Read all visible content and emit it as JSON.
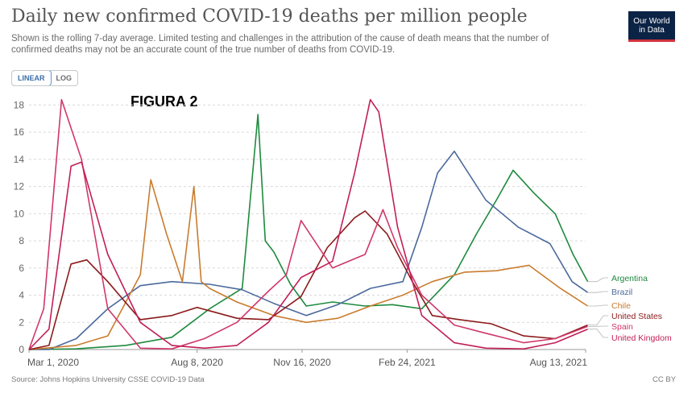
{
  "header": {
    "title": "Daily new confirmed COVID-19 deaths per million people",
    "subtitle": "Shown is the rolling 7-day average. Limited testing and challenges in the attribution of the cause of death means that the number of confirmed deaths may not be an accurate count of the true number of deaths from COVID-19.",
    "logo_line1": "Our World",
    "logo_line2": "in Data"
  },
  "scale_toggle": {
    "linear_label": "LINEAR",
    "log_label": "LOG",
    "selected": "LINEAR"
  },
  "annotation": "FIGURA 2",
  "footer": {
    "source": "Source: Johns Hopkins University CSSE COVID-19 Data",
    "license": "CC BY"
  },
  "chart_data": {
    "type": "line",
    "title": "Daily new confirmed COVID-19 deaths per million people",
    "xlabel": "",
    "ylabel": "",
    "x_ticks": [
      "Mar 1, 2020",
      "Aug 8, 2020",
      "Nov 16, 2020",
      "Feb 24, 2021",
      "Aug 13, 2021"
    ],
    "y_ticks": [
      0,
      2,
      4,
      6,
      8,
      10,
      12,
      14,
      16,
      18
    ],
    "ylim": [
      0,
      18.5
    ],
    "grid": true,
    "legend": "right-end-labels",
    "series": [
      {
        "name": "Argentina",
        "color": "#1e8a3e",
        "x": [
          "2020-03-01",
          "2020-04-15",
          "2020-06-01",
          "2020-07-15",
          "2020-08-20",
          "2020-09-20",
          "2020-10-05",
          "2020-10-12",
          "2020-10-20",
          "2020-11-05",
          "2020-11-20",
          "2020-12-15",
          "2021-01-15",
          "2021-02-10",
          "2021-03-10",
          "2021-04-10",
          "2021-05-01",
          "2021-05-20",
          "2021-06-05",
          "2021-06-25",
          "2021-07-15",
          "2021-08-01",
          "2021-08-15"
        ],
        "y": [
          0,
          0.05,
          0.3,
          0.9,
          3.0,
          4.5,
          17.3,
          8.0,
          7.2,
          4.8,
          3.2,
          3.5,
          3.2,
          3.3,
          3.0,
          5.5,
          8.5,
          11.0,
          13.2,
          11.5,
          10.0,
          7.0,
          5.0
        ]
      },
      {
        "name": "Brazil",
        "color": "#4c6a9c",
        "x": [
          "2020-03-01",
          "2020-03-20",
          "2020-04-15",
          "2020-05-15",
          "2020-06-15",
          "2020-07-15",
          "2020-08-20",
          "2020-09-20",
          "2020-10-20",
          "2020-11-20",
          "2020-12-20",
          "2021-01-20",
          "2021-02-20",
          "2021-03-10",
          "2021-03-25",
          "2021-04-10",
          "2021-05-10",
          "2021-06-10",
          "2021-07-10",
          "2021-07-31",
          "2021-08-15"
        ],
        "y": [
          0,
          0,
          0.8,
          3.0,
          4.7,
          5.0,
          4.8,
          4.4,
          3.4,
          2.5,
          3.3,
          4.5,
          5.0,
          9.0,
          13.0,
          14.6,
          11.0,
          9.0,
          7.8,
          5.0,
          4.2
        ]
      },
      {
        "name": "Chile",
        "color": "#c87c2e",
        "x": [
          "2020-03-01",
          "2020-04-15",
          "2020-05-15",
          "2020-06-15",
          "2020-06-25",
          "2020-07-10",
          "2020-07-25",
          "2020-08-05",
          "2020-08-12",
          "2020-08-20",
          "2020-09-15",
          "2020-10-20",
          "2020-11-20",
          "2020-12-20",
          "2021-01-20",
          "2021-02-20",
          "2021-03-20",
          "2021-04-20",
          "2021-05-20",
          "2021-06-20",
          "2021-07-20",
          "2021-08-15"
        ],
        "y": [
          0,
          0.3,
          1.0,
          5.5,
          12.5,
          8.5,
          5.0,
          12.0,
          5.0,
          4.5,
          3.5,
          2.5,
          2.0,
          2.3,
          3.2,
          4.0,
          5.0,
          5.7,
          5.8,
          6.2,
          4.5,
          3.2
        ]
      },
      {
        "name": "United States",
        "color": "#8b1a1a",
        "x": [
          "2020-03-01",
          "2020-03-20",
          "2020-04-10",
          "2020-04-25",
          "2020-05-15",
          "2020-06-15",
          "2020-07-15",
          "2020-08-08",
          "2020-09-15",
          "2020-10-15",
          "2020-11-15",
          "2020-12-10",
          "2021-01-05",
          "2021-01-15",
          "2021-02-05",
          "2021-03-01",
          "2021-03-20",
          "2021-04-15",
          "2021-05-15",
          "2021-06-15",
          "2021-07-15",
          "2021-08-15"
        ],
        "y": [
          0,
          0.3,
          6.3,
          6.6,
          5.0,
          2.2,
          2.5,
          3.1,
          2.3,
          2.2,
          3.9,
          7.5,
          9.7,
          10.2,
          8.5,
          5.0,
          2.5,
          2.2,
          1.9,
          1.0,
          0.8,
          1.8
        ]
      },
      {
        "name": "Spain",
        "color": "#d0376a",
        "x": [
          "2020-03-01",
          "2020-03-15",
          "2020-04-01",
          "2020-04-20",
          "2020-05-15",
          "2020-06-15",
          "2020-07-15",
          "2020-08-15",
          "2020-09-15",
          "2020-10-15",
          "2020-11-01",
          "2020-11-15",
          "2020-12-15",
          "2021-01-15",
          "2021-02-01",
          "2021-02-15",
          "2021-03-10",
          "2021-04-10",
          "2021-05-10",
          "2021-06-15",
          "2021-07-15",
          "2021-08-15"
        ],
        "y": [
          0,
          3.0,
          18.4,
          14.0,
          3.0,
          0.1,
          0.05,
          0.8,
          2.0,
          4.3,
          5.5,
          9.5,
          6.0,
          7.0,
          10.3,
          7.5,
          4.0,
          1.8,
          1.2,
          0.5,
          0.8,
          1.7
        ]
      },
      {
        "name": "United Kingdom",
        "color": "#c11f57",
        "x": [
          "2020-03-01",
          "2020-03-20",
          "2020-04-10",
          "2020-04-20",
          "2020-05-15",
          "2020-06-15",
          "2020-07-15",
          "2020-08-15",
          "2020-09-15",
          "2020-10-15",
          "2020-11-15",
          "2020-12-15",
          "2021-01-05",
          "2021-01-20",
          "2021-01-28",
          "2021-02-15",
          "2021-03-10",
          "2021-04-10",
          "2021-05-10",
          "2021-06-15",
          "2021-07-15",
          "2021-08-15"
        ],
        "y": [
          0,
          1.5,
          13.5,
          13.8,
          7.0,
          2.0,
          0.3,
          0.1,
          0.3,
          2.0,
          5.3,
          6.5,
          13.0,
          18.4,
          17.5,
          9.0,
          2.5,
          0.5,
          0.1,
          0.05,
          0.5,
          1.5
        ]
      }
    ]
  }
}
